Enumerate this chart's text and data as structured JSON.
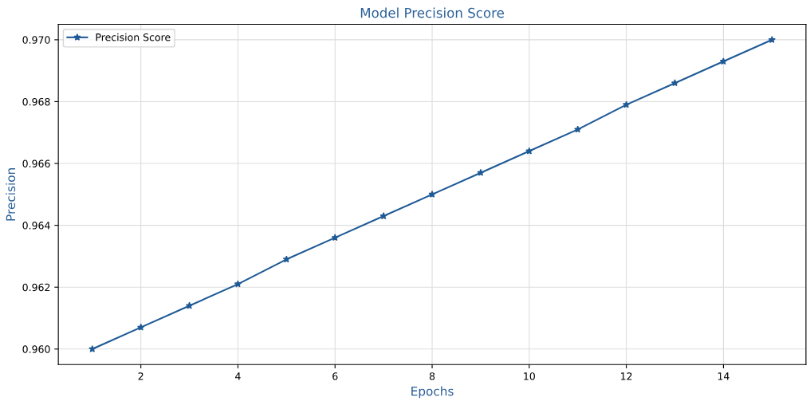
{
  "chart_data": {
    "type": "line",
    "title": "Model Precision Score",
    "xlabel": "Epochs",
    "ylabel": "Precision",
    "x": [
      1,
      2,
      3,
      4,
      5,
      6,
      7,
      8,
      9,
      10,
      11,
      12,
      13,
      14,
      15
    ],
    "series": [
      {
        "name": "Precision Score",
        "color": "#1f5a96",
        "values": [
          0.96,
          0.9607,
          0.9614,
          0.9621,
          0.9629,
          0.9636,
          0.9643,
          0.965,
          0.9657,
          0.9664,
          0.9671,
          0.9679,
          0.9686,
          0.9693,
          0.97
        ]
      }
    ],
    "xlim": [
      0.3,
      15.7
    ],
    "ylim": [
      0.9595,
      0.9705
    ],
    "xticks": [
      2,
      4,
      6,
      8,
      10,
      12,
      14
    ],
    "yticks": [
      {
        "value": 0.96,
        "label": "0.960"
      },
      {
        "value": 0.962,
        "label": "0.962"
      },
      {
        "value": 0.964,
        "label": "0.964"
      },
      {
        "value": 0.966,
        "label": "0.966"
      },
      {
        "value": 0.968,
        "label": "0.968"
      },
      {
        "value": 0.97,
        "label": "0.970"
      }
    ],
    "grid": true,
    "legend": "top left",
    "marker": "star",
    "line_style": "solid"
  }
}
